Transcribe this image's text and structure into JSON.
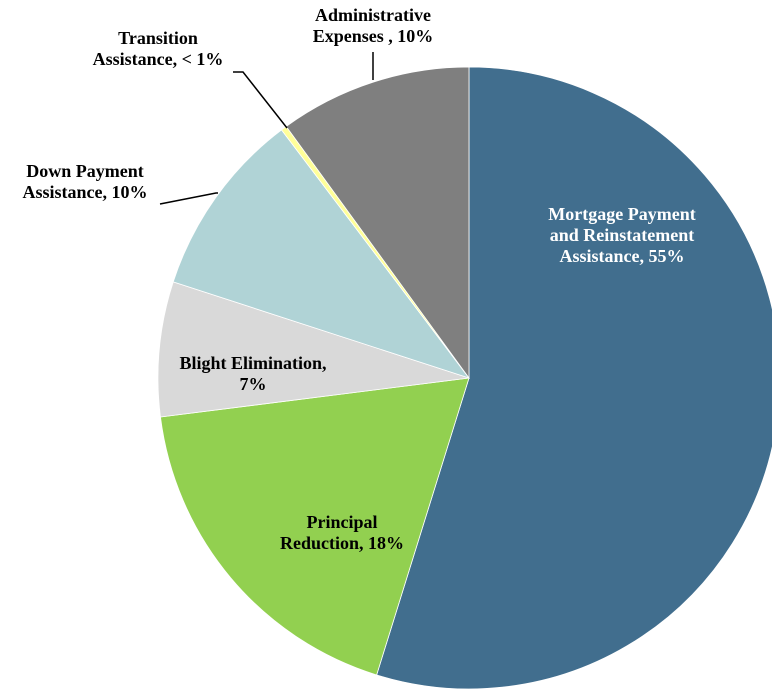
{
  "chart_data": {
    "type": "pie",
    "start_angle_deg": 0,
    "direction": "clockwise",
    "slices": [
      {
        "name": "Mortgage Payment and Reinstatement Assistance",
        "value": 54.8,
        "color": "#416E8E",
        "label_lines": [
          "Mortgage Payment",
          "and Reinstatement",
          "Assistance, 55%"
        ],
        "label_color": "#FFFFFF"
      },
      {
        "name": "Principal Reduction",
        "value": 18.2,
        "color": "#92D050",
        "label_lines": [
          "Principal",
          "Reduction, 18%"
        ],
        "label_color": "#000000"
      },
      {
        "name": "Blight Elimination",
        "value": 7,
        "color": "#D9D9D9",
        "label_lines": [
          "Blight Elimination,",
          "7%"
        ],
        "label_color": "#000000"
      },
      {
        "name": "Down Payment Assistance",
        "value": 9.7,
        "color": "#B0D3D6",
        "label_lines": [
          "Down Payment",
          "Assistance, 10%"
        ],
        "label_color": "#000000"
      },
      {
        "name": "Transition Assistance",
        "value": 0.3,
        "color": "#FFFF99",
        "label_lines": [
          "Transition",
          "Assistance, < 1%"
        ],
        "label_color": "#000000"
      },
      {
        "name": "Administrative Expenses",
        "value": 10,
        "color": "#7F7F7F",
        "label_lines": [
          "Administrative",
          "Expenses , 10%"
        ],
        "label_color": "#000000"
      }
    ]
  }
}
